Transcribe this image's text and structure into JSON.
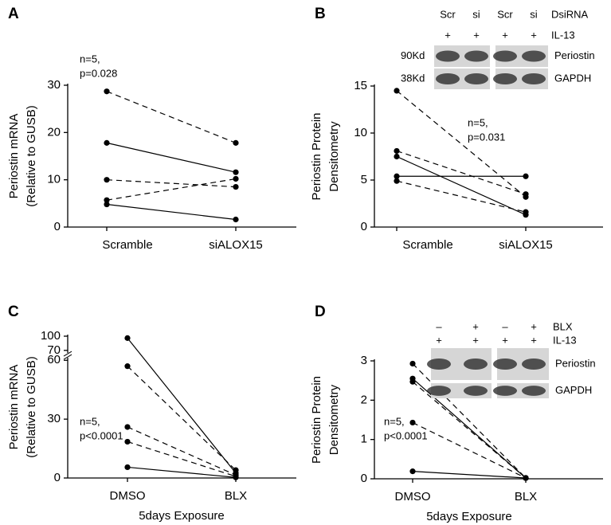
{
  "chart_data": [
    {
      "type": "paired-line",
      "panel": "A",
      "categories": [
        "Scramble",
        "siALOX15"
      ],
      "ylabel": [
        "Periostin mRNA",
        "(Relative to GUSB)"
      ],
      "annotation": [
        "n=5,",
        "p=0.028"
      ],
      "ylim": [
        0,
        30
      ],
      "yticks": [
        0,
        10,
        20,
        30
      ],
      "color": "#000000",
      "series": [
        {
          "values": [
            28.7,
            17.8
          ],
          "dashed": true
        },
        {
          "values": [
            17.8,
            11.6
          ],
          "dashed": false
        },
        {
          "values": [
            10,
            8.5
          ],
          "dashed": true
        },
        {
          "values": [
            5.7,
            10.2
          ],
          "dashed": true
        },
        {
          "values": [
            4.8,
            1.6
          ],
          "dashed": false
        }
      ]
    },
    {
      "type": "paired-line",
      "panel": "B",
      "categories": [
        "Scramble",
        "siALOX15"
      ],
      "ylabel": [
        "Periostin Protein",
        "Densitometry"
      ],
      "annotation": [
        "n=5,",
        "p=0.031"
      ],
      "ylim": [
        0,
        15
      ],
      "yticks": [
        0,
        5,
        10,
        15
      ],
      "color": "#000000",
      "series": [
        {
          "values": [
            14.5,
            3.2
          ],
          "dashed": true
        },
        {
          "values": [
            8.1,
            3.5
          ],
          "dashed": true
        },
        {
          "values": [
            7.5,
            1.3
          ],
          "dashed": false
        },
        {
          "values": [
            5.4,
            5.4
          ],
          "dashed": false
        },
        {
          "values": [
            4.9,
            1.6
          ],
          "dashed": true
        }
      ],
      "blot": {
        "lanes": [
          [
            "Scr",
            "si",
            "Scr",
            "si"
          ],
          [
            "+",
            "+",
            "+",
            "+"
          ]
        ],
        "lane_labels": [
          "DsiRNA",
          "IL-13"
        ],
        "left_labels": [
          "90Kd",
          "38Kd"
        ],
        "right_labels": [
          "Periostin",
          "GAPDH"
        ]
      }
    },
    {
      "type": "paired-line",
      "panel": "C",
      "categories": [
        "DMSO",
        "BLX"
      ],
      "xlabel": "5days Exposure",
      "ylabel": [
        "Periostin mRNA",
        "(Relative to GUSB)"
      ],
      "annotation": [
        "n=5,",
        "p<0.0001"
      ],
      "ylim": [
        0,
        100
      ],
      "ybreak": [
        60,
        70
      ],
      "yticks": [
        0,
        30,
        60,
        70,
        100
      ],
      "color": "#000000",
      "series": [
        {
          "values": [
            96,
            2.5
          ],
          "dashed": false
        },
        {
          "values": [
            57,
            4
          ],
          "dashed": true
        },
        {
          "values": [
            26,
            1.5
          ],
          "dashed": true
        },
        {
          "values": [
            18.5,
            0.8
          ],
          "dashed": true
        },
        {
          "values": [
            5.5,
            0.3
          ],
          "dashed": false
        }
      ]
    },
    {
      "type": "paired-line",
      "panel": "D",
      "categories": [
        "DMSO",
        "BLX"
      ],
      "xlabel": "5days Exposure",
      "ylabel": [
        "Periostin Protein",
        "Densitometry"
      ],
      "annotation": [
        "n=5,",
        "p<0.0001"
      ],
      "ylim": [
        0,
        3
      ],
      "yticks": [
        0,
        1,
        2,
        3
      ],
      "color": "#000000",
      "series": [
        {
          "values": [
            2.93,
            0.02
          ],
          "dashed": true
        },
        {
          "values": [
            2.55,
            0.02
          ],
          "dashed": false
        },
        {
          "values": [
            2.47,
            0.02
          ],
          "dashed": true
        },
        {
          "values": [
            1.43,
            0.02
          ],
          "dashed": true
        },
        {
          "values": [
            0.19,
            0.02
          ],
          "dashed": false
        }
      ],
      "blot": {
        "lanes": [
          [
            "–",
            "+",
            "–",
            "+"
          ],
          [
            "+",
            "+",
            "+",
            "+"
          ]
        ],
        "lane_labels": [
          "BLX",
          "IL-13"
        ],
        "right_labels": [
          "Periostin",
          "GAPDH"
        ]
      }
    }
  ]
}
